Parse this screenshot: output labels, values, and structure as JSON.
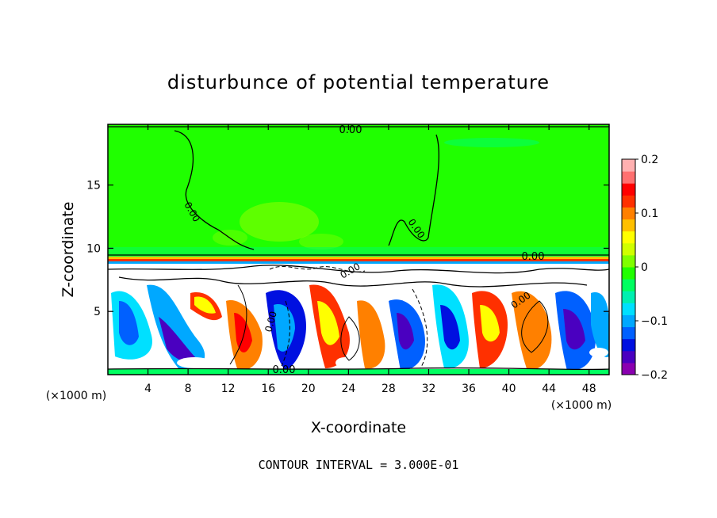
{
  "chart_data": {
    "type": "heatmap",
    "title": "disturbunce of potential temperature",
    "xlabel": "X-coordinate",
    "ylabel": "Z-coordinate",
    "x_unit_left": "(×1000 m)",
    "x_unit_right": "(×1000 m)",
    "xlim": [
      0,
      50
    ],
    "ylim": [
      0,
      19.8
    ],
    "x_ticks": [
      4,
      8,
      12,
      16,
      20,
      24,
      28,
      32,
      36,
      40,
      44,
      48
    ],
    "y_ticks": [
      5,
      10,
      15
    ],
    "colorbar": {
      "range": [
        -0.2,
        0.2
      ],
      "tick_values": [
        0.2,
        0.1,
        0,
        -0.1,
        -0.2
      ],
      "tick_labels": [
        "0.2",
        "0.1",
        "0",
        "−0.1",
        "−0.2"
      ],
      "colors": [
        "#8a00b0",
        "#4a00c0",
        "#0010e0",
        "#0060ff",
        "#00a8ff",
        "#00e0ff",
        "#00f0b0",
        "#00ff60",
        "#20ff00",
        "#80ff00",
        "#d0ff00",
        "#ffff00",
        "#ffc000",
        "#ff8000",
        "#ff3000",
        "#ff0000",
        "#ff7070",
        "#ffb0b0"
      ]
    },
    "contour_labels": [
      "0.00",
      "0.00",
      "0.00",
      "0.00",
      "0.00",
      "0.00",
      "0.00",
      "0.00"
    ],
    "contour_interval_text": "CONTOUR INTERVAL = 3.000E-01",
    "grid": false
  }
}
